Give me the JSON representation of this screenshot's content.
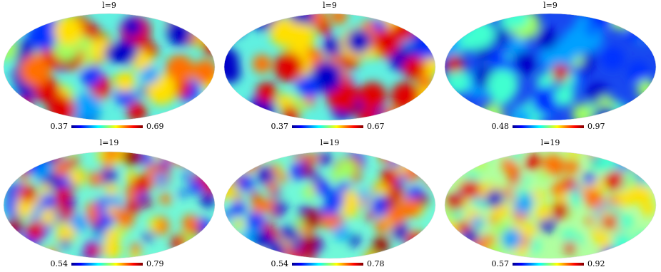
{
  "chart_data": [
    {
      "type": "mollweide",
      "title": "l=9",
      "clim": [
        0.37,
        0.69
      ]
    },
    {
      "type": "mollweide",
      "title": "l=9",
      "clim": [
        0.37,
        0.67
      ]
    },
    {
      "type": "mollweide",
      "title": "l=9",
      "clim": [
        0.48,
        0.97
      ]
    },
    {
      "type": "mollweide",
      "title": "l=19",
      "clim": [
        0.54,
        0.79
      ]
    },
    {
      "type": "mollweide",
      "title": "l=19",
      "clim": [
        0.54,
        0.78
      ]
    },
    {
      "type": "mollweide",
      "title": "l=19",
      "clim": [
        0.57,
        0.92
      ]
    }
  ]
}
